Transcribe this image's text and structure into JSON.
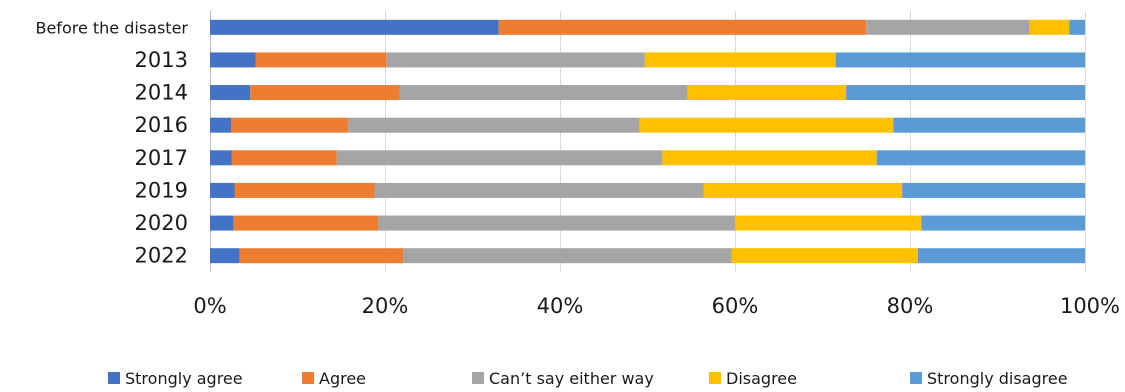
{
  "chart_data": {
    "type": "bar",
    "orientation": "horizontal",
    "stacked": true,
    "percent_stacked": true,
    "categories": [
      "Before the disaster",
      "2013",
      "2014",
      "2016",
      "2017",
      "2019",
      "2020",
      "2022"
    ],
    "series": [
      {
        "name": "Strongly agree",
        "color": "#4472c4",
        "values": [
          33.0,
          5.2,
          4.6,
          2.4,
          2.5,
          2.8,
          2.7,
          3.4
        ]
      },
      {
        "name": "Agree",
        "color": "#ed7d31",
        "values": [
          42.0,
          15.0,
          17.1,
          13.4,
          12.0,
          16.0,
          16.5,
          18.7
        ]
      },
      {
        "name": "Can’t say either way",
        "color": "#a5a5a5",
        "values": [
          18.6,
          29.5,
          32.9,
          33.3,
          37.2,
          37.6,
          40.8,
          37.5
        ]
      },
      {
        "name": "Disagree",
        "color": "#ffc000",
        "values": [
          4.6,
          21.8,
          18.1,
          29.0,
          24.5,
          22.7,
          21.3,
          21.3
        ]
      },
      {
        "name": "Strongly disagree",
        "color": "#5b9bd5",
        "values": [
          1.8,
          28.5,
          27.3,
          21.9,
          23.8,
          20.9,
          18.7,
          19.1
        ]
      }
    ],
    "xlim": [
      0,
      100
    ],
    "x_ticks": [
      "0%",
      "20%",
      "40%",
      "60%",
      "80%",
      "100%"
    ],
    "grid": true,
    "legend_position": "bottom"
  }
}
